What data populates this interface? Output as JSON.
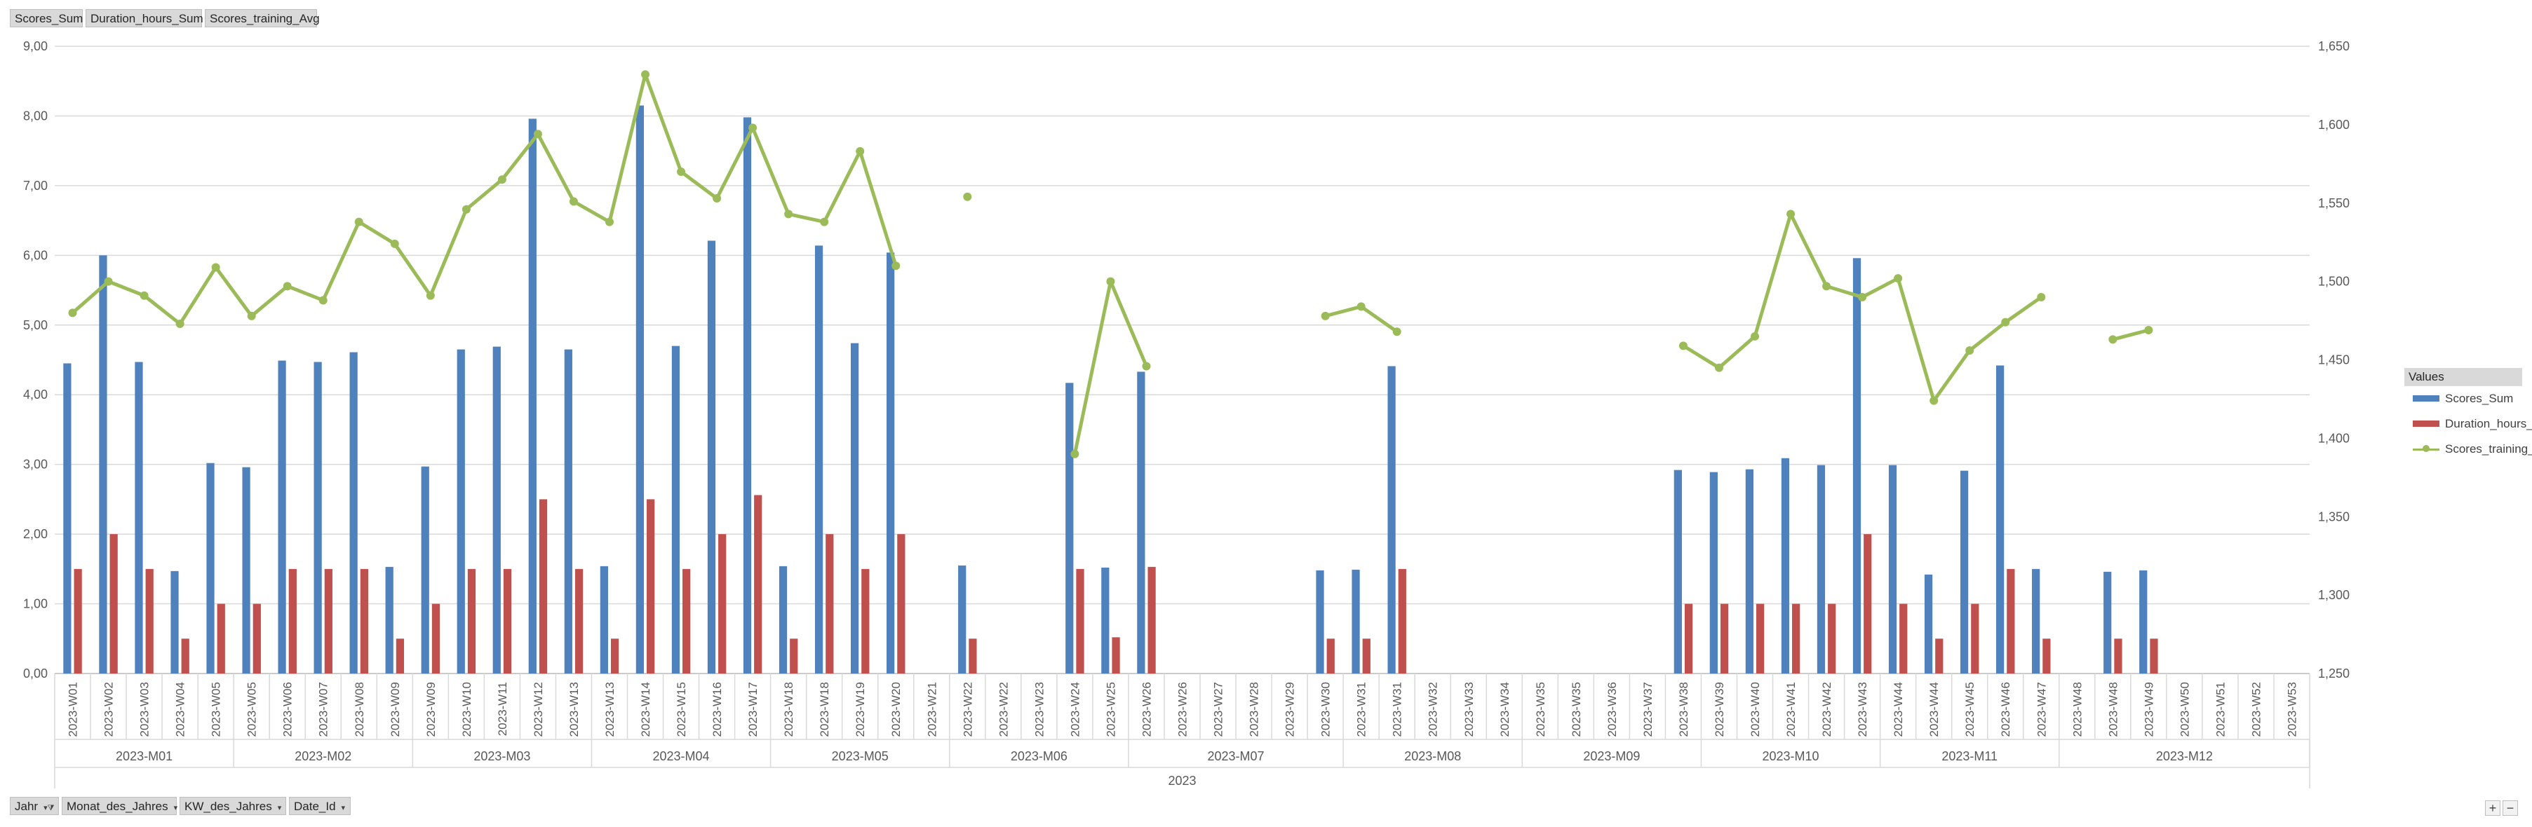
{
  "top_field_buttons": [
    "Scores_Sum",
    "Duration_hours_Sum",
    "Scores_training_Avg"
  ],
  "bottom_field_buttons": [
    {
      "label": "Jahr",
      "filter": true
    },
    {
      "label": "Monat_des_Jahres",
      "filter": false
    },
    {
      "label": "KW_des_Jahres",
      "filter": false
    },
    {
      "label": "Date_Id",
      "filter": false
    }
  ],
  "legend": {
    "title": "Values",
    "items": [
      {
        "label": "Scores_Sum",
        "kind": "bar",
        "color": "#4f81bd"
      },
      {
        "label": "Duration_hours_Sum",
        "kind": "bar",
        "color": "#c0504d"
      },
      {
        "label": "Scores_training_Avg",
        "kind": "line",
        "color": "#9bbb59"
      }
    ]
  },
  "zoom": {
    "plus": "+",
    "minus": "−"
  },
  "chart_data": {
    "type": "bar",
    "title": "",
    "year_label": "2023",
    "ylim": [
      0,
      9
    ],
    "y_ticks": [
      "0,00",
      "1,00",
      "2,00",
      "3,00",
      "4,00",
      "5,00",
      "6,00",
      "7,00",
      "8,00",
      "9,00"
    ],
    "y2lim": [
      1250,
      1650
    ],
    "y2_ticks": [
      "1,250",
      "1,300",
      "1,350",
      "1,400",
      "1,450",
      "1,500",
      "1,550",
      "1,600",
      "1,650"
    ],
    "categories": [
      "2023-W01",
      "2023-W02",
      "2023-W03",
      "2023-W04",
      "2023-W05",
      "2023-W05",
      "2023-W06",
      "2023-W07",
      "2023-W08",
      "2023-W09",
      "2023-W09",
      "2023-W10",
      "2023-W11",
      "2023-W12",
      "2023-W13",
      "2023-W13",
      "2023-W14",
      "2023-W15",
      "2023-W16",
      "2023-W17",
      "2023-W18",
      "2023-W18",
      "2023-W19",
      "2023-W20",
      "2023-W21",
      "2023-W22",
      "2023-W22",
      "2023-W23",
      "2023-W24",
      "2023-W25",
      "2023-W26",
      "2023-W26",
      "2023-W27",
      "2023-W28",
      "2023-W29",
      "2023-W30",
      "2023-W31",
      "2023-W31",
      "2023-W32",
      "2023-W33",
      "2023-W34",
      "2023-W35",
      "2023-W35",
      "2023-W36",
      "2023-W37",
      "2023-W38",
      "2023-W39",
      "2023-W40",
      "2023-W41",
      "2023-W42",
      "2023-W43",
      "2023-W44",
      "2023-W44",
      "2023-W45",
      "2023-W46",
      "2023-W47",
      "2023-W48",
      "2023-W48",
      "2023-W49",
      "2023-W50",
      "2023-W51",
      "2023-W52",
      "2023-W53"
    ],
    "months": [
      {
        "label": "2023-M01",
        "start": 0,
        "count": 5
      },
      {
        "label": "2023-M02",
        "start": 5,
        "count": 5
      },
      {
        "label": "2023-M03",
        "start": 10,
        "count": 5
      },
      {
        "label": "2023-M04",
        "start": 15,
        "count": 5
      },
      {
        "label": "2023-M05",
        "start": 20,
        "count": 5
      },
      {
        "label": "2023-M06",
        "start": 25,
        "count": 5
      },
      {
        "label": "2023-M07",
        "start": 30,
        "count": 6
      },
      {
        "label": "2023-M08",
        "start": 36,
        "count": 5
      },
      {
        "label": "2023-M09",
        "start": 41,
        "count": 5
      },
      {
        "label": "2023-M10",
        "start": 46,
        "count": 5
      },
      {
        "label": "2023-M11",
        "start": 51,
        "count": 5
      },
      {
        "label": "2023-M12",
        "start": 56,
        "count": 7
      }
    ],
    "series": [
      {
        "name": "Scores_Sum",
        "axis": "left",
        "color": "#4f81bd",
        "values": [
          4.45,
          6.0,
          4.47,
          1.47,
          3.02,
          2.96,
          4.49,
          4.47,
          4.61,
          1.53,
          2.97,
          4.65,
          4.69,
          7.96,
          4.65,
          1.54,
          8.15,
          4.7,
          6.21,
          7.98,
          1.54,
          6.14,
          4.74,
          6.04,
          null,
          1.55,
          null,
          null,
          4.17,
          1.52,
          4.33,
          null,
          null,
          null,
          null,
          1.48,
          1.49,
          4.41,
          null,
          null,
          null,
          null,
          null,
          null,
          null,
          2.92,
          2.89,
          2.93,
          3.09,
          2.99,
          5.96,
          2.99,
          1.42,
          2.91,
          4.42,
          1.5,
          null,
          1.46,
          1.48,
          null,
          null,
          null,
          null
        ]
      },
      {
        "name": "Duration_hours_Sum",
        "axis": "left",
        "color": "#c0504d",
        "values": [
          1.5,
          2.0,
          1.5,
          0.5,
          1.0,
          1.0,
          1.5,
          1.5,
          1.5,
          0.5,
          1.0,
          1.5,
          1.5,
          2.5,
          1.5,
          0.5,
          2.5,
          1.5,
          2.0,
          2.56,
          0.5,
          2.0,
          1.5,
          2.0,
          null,
          0.5,
          null,
          null,
          1.5,
          0.52,
          1.53,
          null,
          null,
          null,
          null,
          0.5,
          0.5,
          1.5,
          null,
          null,
          null,
          null,
          null,
          null,
          null,
          1.0,
          1.0,
          1.0,
          1.0,
          1.0,
          2.0,
          1.0,
          0.5,
          1.0,
          1.5,
          0.5,
          null,
          0.5,
          0.5,
          null,
          null,
          null,
          null
        ]
      },
      {
        "name": "Scores_training_Avg",
        "axis": "right",
        "color": "#9bbb59",
        "type": "line",
        "values": [
          1480,
          1500,
          1491,
          1473,
          1509,
          1478,
          1497,
          1488,
          1538,
          1524,
          1491,
          1546,
          1565,
          1594,
          1551,
          1538,
          1632,
          1570,
          1553,
          1598,
          1543,
          1538,
          1583,
          1510,
          null,
          1554,
          null,
          null,
          1390,
          1500,
          1446,
          null,
          null,
          null,
          null,
          1478,
          1484,
          1468,
          null,
          null,
          null,
          null,
          null,
          null,
          null,
          1459,
          1445,
          1465,
          1543,
          1497,
          1490,
          1502,
          1424,
          1456,
          1474,
          1490,
          null,
          1463,
          1469,
          null,
          null,
          null,
          null
        ]
      }
    ],
    "grid": true,
    "legend_position": "right"
  }
}
